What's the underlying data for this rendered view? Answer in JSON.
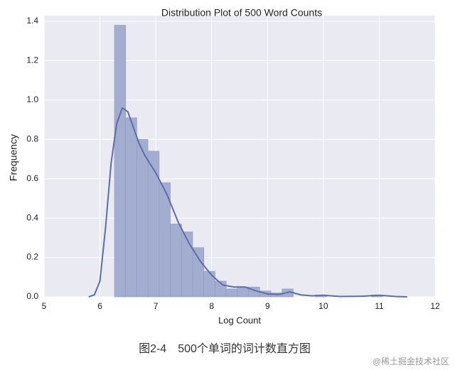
{
  "chart_data": {
    "type": "histogram",
    "title": "Distribution Plot of 500 Word Counts",
    "x_label": "Log Count",
    "y_label": "Frequency",
    "bins": [
      6.26,
      6.46,
      6.66,
      6.86,
      7.06,
      7.26,
      7.46,
      7.66,
      7.86,
      8.06,
      8.26,
      8.46,
      8.66,
      8.86,
      9.06,
      9.26,
      9.46,
      9.66,
      9.86,
      10.06,
      10.26,
      10.46,
      10.66,
      10.86,
      11.06,
      11.26
    ],
    "values": [
      1.38,
      0.91,
      0.8,
      0.74,
      0.58,
      0.37,
      0.33,
      0.25,
      0.13,
      0.08,
      0.04,
      0.05,
      0.05,
      0.03,
      0.02,
      0.04,
      0,
      0,
      0.01,
      0,
      0,
      0,
      0,
      0.01,
      0
    ],
    "color": "#a3adcf",
    "kde": {
      "color": "#5a6eaa",
      "x": [
        5.8,
        5.9,
        6.0,
        6.1,
        6.2,
        6.3,
        6.4,
        6.5,
        6.6,
        6.7,
        6.8,
        7.0,
        7.2,
        7.4,
        7.6,
        7.8,
        8.0,
        8.2,
        8.4,
        8.6,
        8.8,
        9.0,
        9.2,
        9.4,
        9.6,
        9.8,
        10.0,
        10.3,
        10.7,
        11.0,
        11.3,
        11.5
      ],
      "y": [
        0,
        0.01,
        0.08,
        0.35,
        0.68,
        0.88,
        0.96,
        0.94,
        0.86,
        0.78,
        0.72,
        0.63,
        0.52,
        0.38,
        0.27,
        0.18,
        0.11,
        0.06,
        0.05,
        0.05,
        0.03,
        0.015,
        0.012,
        0.025,
        0.01,
        0.005,
        0.008,
        0.002,
        0.003,
        0.008,
        0.002,
        0
      ]
    },
    "xlim": [
      5,
      12
    ],
    "xticks": [
      5,
      6,
      7,
      8,
      9,
      10,
      11,
      12
    ],
    "ylim": [
      0,
      1.4
    ],
    "yticks": [
      {
        "value": 0,
        "label": "0.0"
      },
      {
        "value": 0.2,
        "label": "0.2"
      },
      {
        "value": 0.4,
        "label": "0.4"
      },
      {
        "value": 0.6,
        "label": "0.6"
      },
      {
        "value": 0.8,
        "label": "0.8"
      },
      {
        "value": 1.0,
        "label": "1.0"
      },
      {
        "value": 1.2,
        "label": "1.2"
      },
      {
        "value": 1.4,
        "label": "1.4"
      }
    ],
    "grid": true,
    "caption": "图2-4　500个单词的词计数直方图",
    "watermark": "@稀土掘金技术社区"
  }
}
